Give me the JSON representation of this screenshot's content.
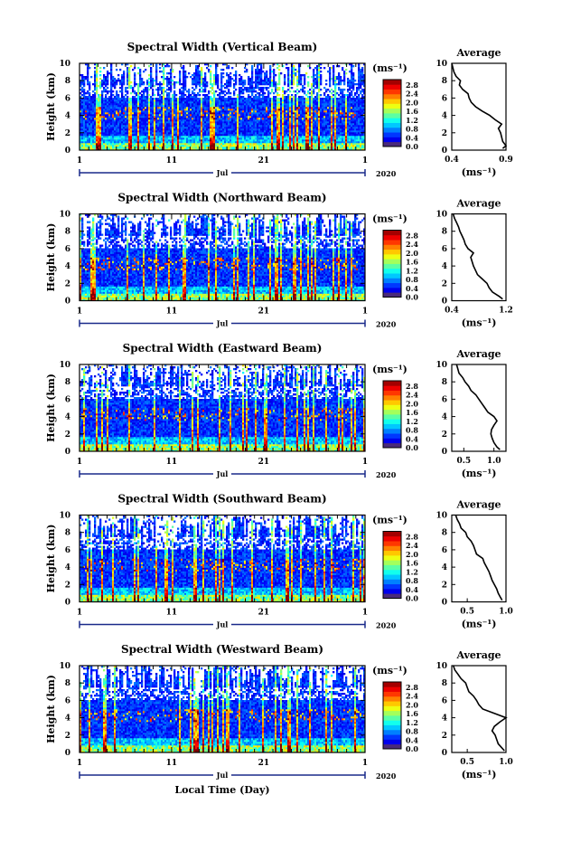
{
  "figure": {
    "xlabel": "Local Time (Day)",
    "month_label": "Jul",
    "year_label": "2020",
    "average_title": "Average",
    "colorbar_unit": "(ms⁻¹)",
    "profile_xlabel": "(ms⁻¹)"
  },
  "chart_data": [
    {
      "type": "heatmap",
      "title": "Spectral Width (Vertical Beam)",
      "ylabel": "Height (km)",
      "x_ticks": [
        "1",
        "11",
        "21",
        "1"
      ],
      "xlim_days": [
        1,
        32
      ],
      "ylim": [
        0,
        10
      ],
      "y_ticks": [
        0,
        2,
        4,
        6,
        8,
        10
      ],
      "colorbar": {
        "label": "(ms⁻¹)",
        "ticks": [
          "0.0",
          "0.4",
          "0.8",
          "1.2",
          "1.6",
          "2.0",
          "2.4",
          "2.8"
        ],
        "range": [
          0,
          2.8
        ]
      },
      "profile": {
        "title": "Average",
        "xlim": [
          0.4,
          0.9
        ],
        "x_ticks": [
          "0.4",
          "0.9"
        ],
        "y_ticks": [
          0,
          2,
          4,
          6,
          8,
          10
        ],
        "height_km": [
          0.2,
          0.5,
          1,
          1.5,
          2,
          2.5,
          3,
          3.5,
          4,
          4.5,
          5,
          5.5,
          6,
          6.5,
          7,
          7.5,
          8,
          8.5,
          9,
          9.5,
          10
        ],
        "values": [
          0.87,
          0.9,
          0.87,
          0.86,
          0.85,
          0.83,
          0.86,
          0.8,
          0.75,
          0.68,
          0.62,
          0.58,
          0.56,
          0.55,
          0.5,
          0.47,
          0.48,
          0.44,
          0.42,
          0.41,
          0.4
        ]
      }
    },
    {
      "type": "heatmap",
      "title": "Spectral Width (Northward Beam)",
      "ylabel": "Height (km)",
      "x_ticks": [
        "1",
        "11",
        "21",
        "1"
      ],
      "xlim_days": [
        1,
        32
      ],
      "ylim": [
        0,
        10
      ],
      "y_ticks": [
        0,
        2,
        4,
        6,
        8,
        10
      ],
      "colorbar": {
        "label": "(ms⁻¹)",
        "ticks": [
          "0.0",
          "0.4",
          "0.8",
          "1.2",
          "1.6",
          "2.0",
          "2.4",
          "2.8"
        ],
        "range": [
          0,
          2.8
        ]
      },
      "profile": {
        "title": "Average",
        "xlim": [
          0.4,
          1.2
        ],
        "x_ticks": [
          "0.4",
          "1.2"
        ],
        "y_ticks": [
          0,
          2,
          4,
          6,
          8,
          10
        ],
        "height_km": [
          0.2,
          0.5,
          1,
          1.5,
          2,
          2.5,
          3,
          3.5,
          4,
          4.5,
          5,
          5.5,
          6,
          6.5,
          7,
          7.5,
          8,
          8.5,
          9,
          9.5,
          10
        ],
        "values": [
          1.15,
          1.1,
          1.0,
          0.95,
          0.92,
          0.85,
          0.78,
          0.75,
          0.72,
          0.7,
          0.68,
          0.72,
          0.64,
          0.6,
          0.58,
          0.55,
          0.52,
          0.5,
          0.47,
          0.44,
          0.42
        ]
      }
    },
    {
      "type": "heatmap",
      "title": "Spectral Width (Eastward Beam)",
      "ylabel": "Height (km)",
      "x_ticks": [
        "1",
        "11",
        "21",
        "1"
      ],
      "xlim_days": [
        1,
        32
      ],
      "ylim": [
        0,
        10
      ],
      "y_ticks": [
        0,
        2,
        4,
        6,
        8,
        10
      ],
      "colorbar": {
        "label": "(ms⁻¹)",
        "ticks": [
          "0.0",
          "0.4",
          "0.8",
          "1.2",
          "1.6",
          "2.0",
          "2.4",
          "2.8"
        ],
        "range": [
          0,
          2.8
        ]
      },
      "profile": {
        "title": "Average",
        "xlim": [
          0.3,
          1.2
        ],
        "x_ticks": [
          "0.5",
          "1.0"
        ],
        "y_ticks": [
          0,
          2,
          4,
          6,
          8,
          10
        ],
        "height_km": [
          0.2,
          0.5,
          1,
          1.5,
          2,
          2.5,
          3,
          3.5,
          4,
          4.5,
          5,
          5.5,
          6,
          6.5,
          7,
          7.5,
          8,
          8.5,
          9,
          9.5,
          10
        ],
        "values": [
          1.1,
          1.05,
          1.0,
          0.97,
          0.95,
          0.96,
          1.0,
          1.05,
          1.0,
          0.9,
          0.85,
          0.8,
          0.75,
          0.7,
          0.62,
          0.58,
          0.52,
          0.48,
          0.42,
          0.4,
          0.38
        ]
      }
    },
    {
      "type": "heatmap",
      "title": "Spectral Width (Southward Beam)",
      "ylabel": "Height (km)",
      "x_ticks": [
        "1",
        "11",
        "21",
        "1"
      ],
      "xlim_days": [
        1,
        32
      ],
      "ylim": [
        0,
        10
      ],
      "y_ticks": [
        0,
        2,
        4,
        6,
        8,
        10
      ],
      "colorbar": {
        "label": "(ms⁻¹)",
        "ticks": [
          "0.0",
          "0.4",
          "0.8",
          "1.2",
          "1.6",
          "2.0",
          "2.4",
          "2.8"
        ],
        "range": [
          0,
          2.8
        ]
      },
      "profile": {
        "title": "Average",
        "xlim": [
          0.3,
          1.0
        ],
        "x_ticks": [
          "0.5",
          "1.0"
        ],
        "y_ticks": [
          0,
          2,
          4,
          6,
          8,
          10
        ],
        "height_km": [
          0.2,
          0.5,
          1,
          1.5,
          2,
          2.5,
          3,
          3.5,
          4,
          4.5,
          5,
          5.5,
          6,
          6.5,
          7,
          7.5,
          8,
          8.5,
          9,
          9.5,
          10
        ],
        "values": [
          0.95,
          0.93,
          0.9,
          0.88,
          0.85,
          0.82,
          0.8,
          0.78,
          0.75,
          0.72,
          0.7,
          0.62,
          0.6,
          0.58,
          0.55,
          0.5,
          0.48,
          0.42,
          0.4,
          0.37,
          0.35
        ]
      }
    },
    {
      "type": "heatmap",
      "title": "Spectral Width (Westward Beam)",
      "ylabel": "Height (km)",
      "x_ticks": [
        "1",
        "11",
        "21",
        "1"
      ],
      "xlim_days": [
        1,
        32
      ],
      "ylim": [
        0,
        10
      ],
      "y_ticks": [
        0,
        2,
        4,
        6,
        8,
        10
      ],
      "colorbar": {
        "label": "(ms⁻¹)",
        "ticks": [
          "0.0",
          "0.4",
          "0.8",
          "1.2",
          "1.6",
          "2.0",
          "2.4",
          "2.8"
        ],
        "range": [
          0,
          2.8
        ]
      },
      "profile": {
        "title": "Average",
        "xlim": [
          0.3,
          1.0
        ],
        "x_ticks": [
          "0.5",
          "1.0"
        ],
        "y_ticks": [
          0,
          2,
          4,
          6,
          8,
          10
        ],
        "height_km": [
          0.2,
          0.5,
          1,
          1.5,
          2,
          2.5,
          3,
          3.5,
          4,
          4.5,
          5,
          5.5,
          6,
          6.5,
          7,
          7.5,
          8,
          8.5,
          9,
          9.5,
          10
        ],
        "values": [
          0.98,
          0.95,
          0.9,
          0.88,
          0.86,
          0.82,
          0.85,
          0.92,
          1.0,
          0.85,
          0.7,
          0.65,
          0.62,
          0.58,
          0.52,
          0.5,
          0.48,
          0.42,
          0.38,
          0.34,
          0.32
        ]
      }
    }
  ]
}
